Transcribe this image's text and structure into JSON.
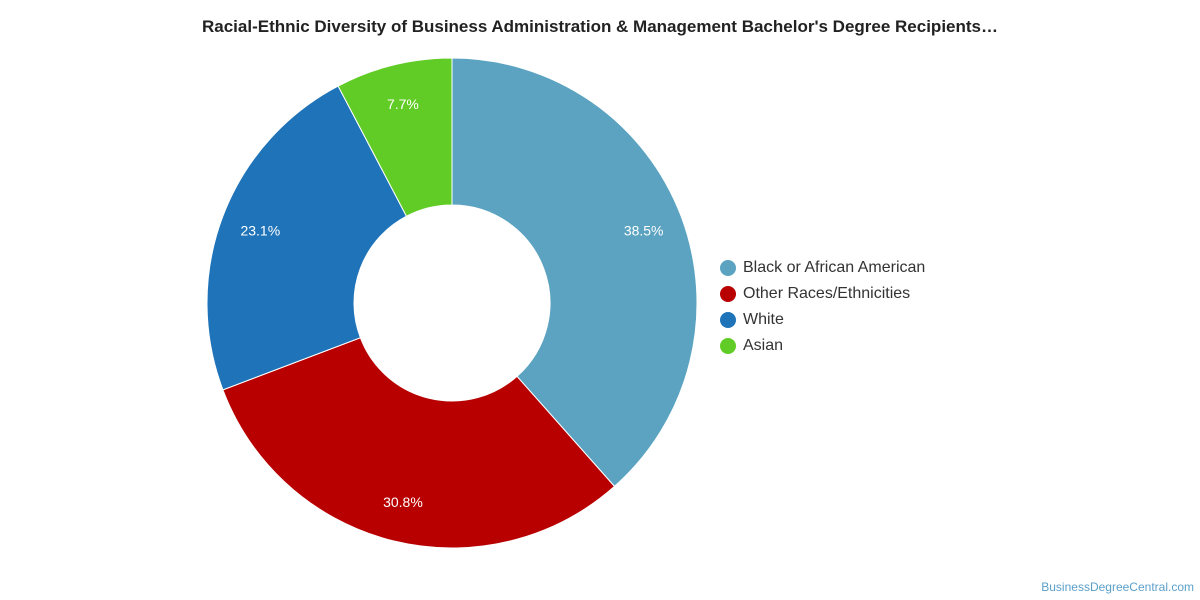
{
  "chart_data": {
    "type": "pie",
    "title": "Racial-Ethnic Diversity of Business Administration & Management Bachelor's Degree Recipients…",
    "donut": true,
    "legend_position": "right",
    "slices": [
      {
        "label": "Black or African American",
        "value": 38.5,
        "value_label": "38.5%",
        "color": "#5ba3c1"
      },
      {
        "label": "Other Races/Ethnicities",
        "value": 30.8,
        "value_label": "30.8%",
        "color": "#b80000"
      },
      {
        "label": "White",
        "value": 23.1,
        "value_label": "23.1%",
        "color": "#1f73b9"
      },
      {
        "label": "Asian",
        "value": 7.7,
        "value_label": "7.7%",
        "color": "#61cc26"
      }
    ]
  },
  "footer": {
    "credit": "BusinessDegreeCentral.com"
  }
}
